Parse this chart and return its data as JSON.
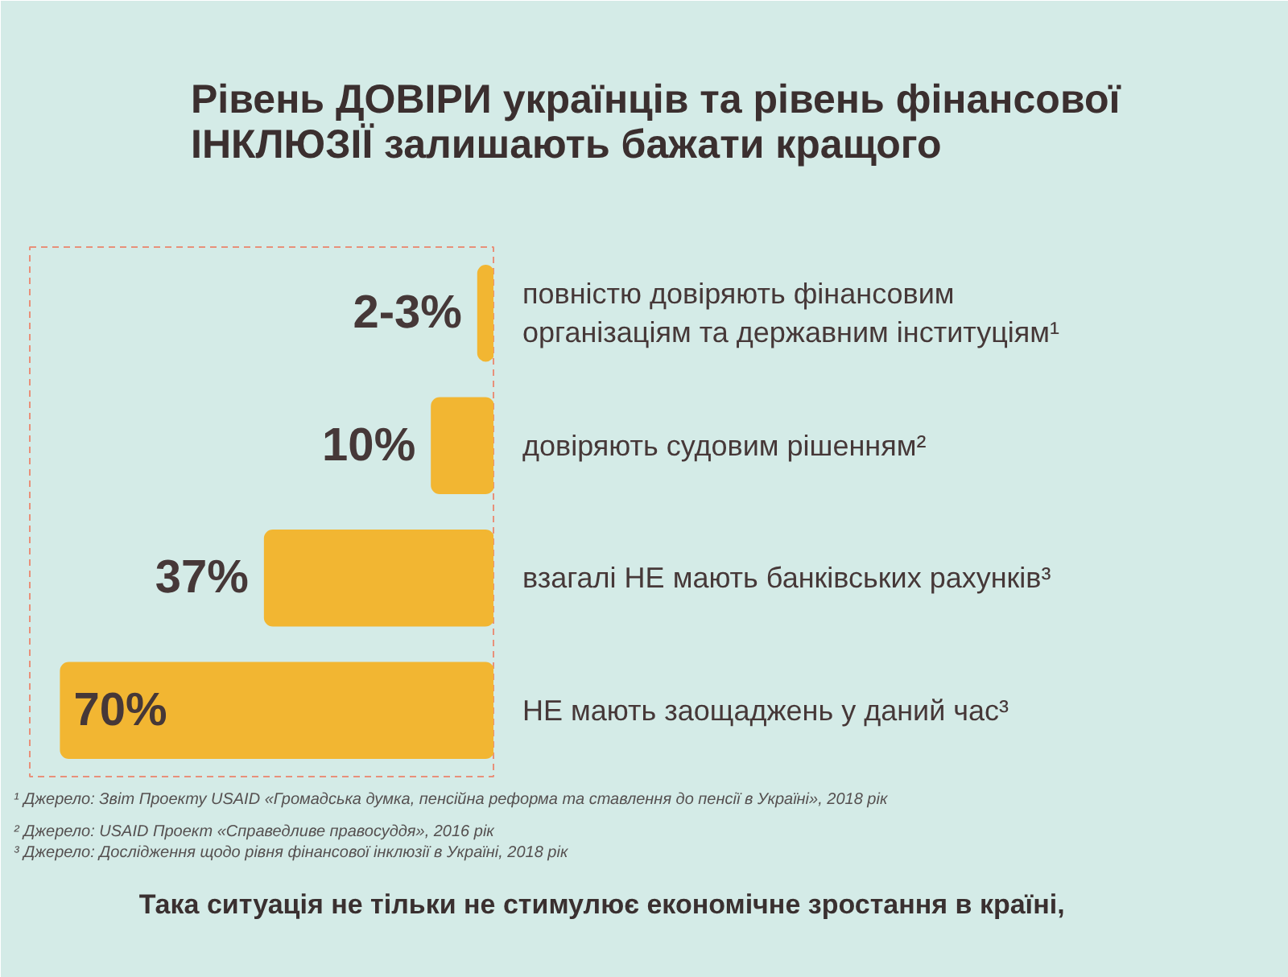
{
  "chart_data": {
    "type": "bar",
    "orientation": "horizontal",
    "title": "Рівень ДОВІРИ українців та рівень фінансової ІНКЛЮЗІЇ залишають бажати кращого",
    "categories": [
      "повністю довіряють фінансовим організаціям та державним інституціям¹",
      "довіряють судовим рішенням²",
      "взагалі НЕ мають банківських рахунків³",
      "НЕ мають заощаджень у даний час³"
    ],
    "values": [
      2.5,
      10,
      37,
      70
    ],
    "value_labels": [
      "2-3%",
      "10%",
      "37%",
      "70%"
    ],
    "color": "#f2b632",
    "xlim": [
      75,
      0
    ],
    "tick_labels": "y",
    "annotations": [
      "¹ Джерело: Звіт Проекту USAID «Громадська думка, пенсійна реформа та ставлення до пенсії в Україні», 2018 рік",
      "² Джерело: USAID Проект «Справедливе правосуддя», 2016 рік",
      "³ Джерело: Дослідження щодо рівня фінансової інклюзії в Україні, 2018 рік",
      "Така ситуація не тільки не стимулює економічне зростання в країні,"
    ]
  }
}
